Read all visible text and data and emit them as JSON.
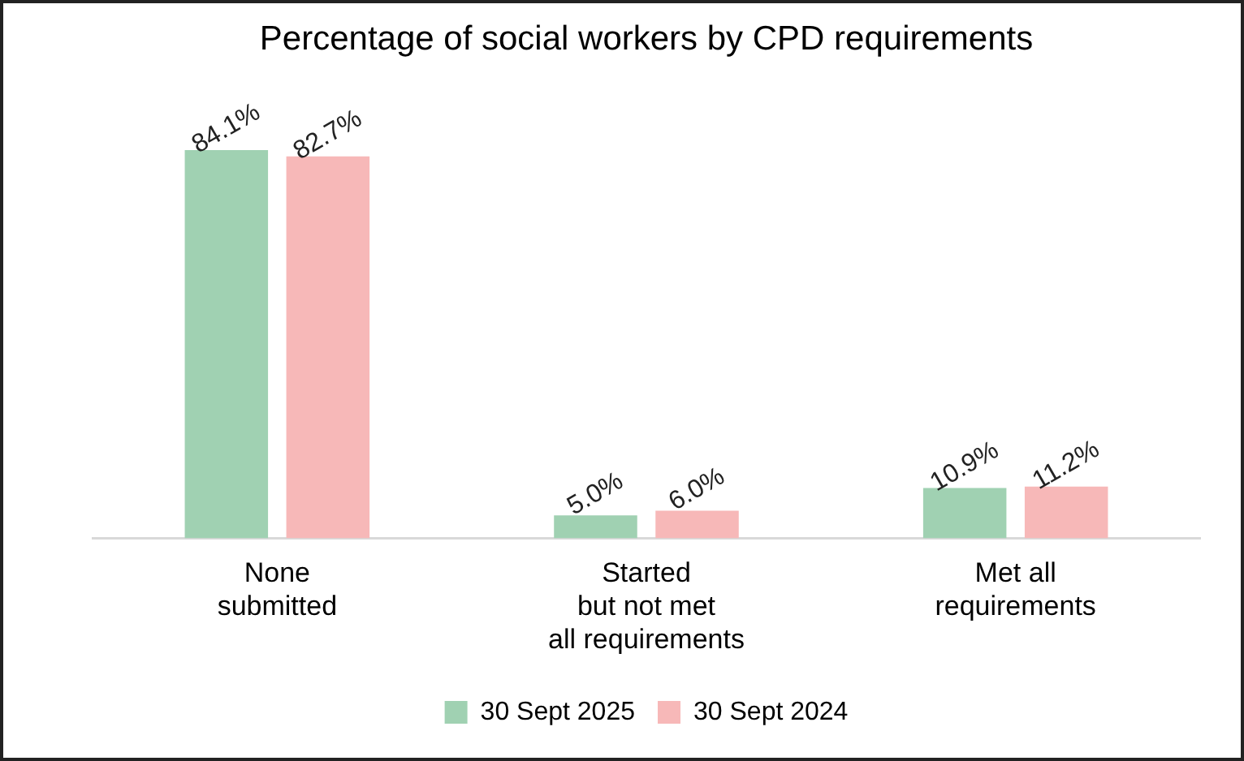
{
  "chart_data": {
    "type": "bar",
    "title": "Percentage of social workers by CPD requirements",
    "categories": [
      "None\nsubmitted",
      "Started\nbut not met\nall requirements",
      "Met all\nrequirements"
    ],
    "series": [
      {
        "name": "30 Sept 2025",
        "color": "#a0d1b2",
        "values": [
          84.1,
          5.0,
          10.9
        ],
        "value_labels": [
          "84.1%",
          "5.0%",
          "10.9%"
        ]
      },
      {
        "name": "30 Sept 2024",
        "color": "#f7b8b8",
        "values": [
          82.7,
          6.0,
          11.2
        ],
        "value_labels": [
          "82.7%",
          "6.0%",
          "11.2%"
        ]
      }
    ],
    "legend": "bottom",
    "grid": false
  }
}
